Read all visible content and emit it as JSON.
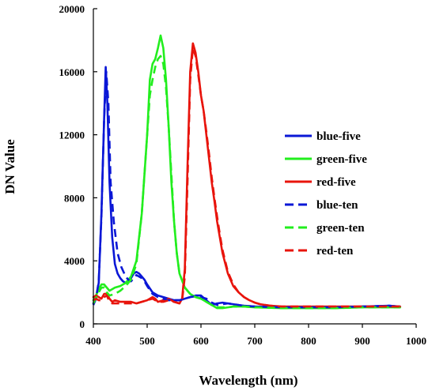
{
  "chart_data": {
    "type": "line",
    "title": "",
    "xlabel": "Wavelength (nm)",
    "ylabel": "DN Value",
    "xlim": [
      400,
      1000
    ],
    "ylim": [
      0,
      20000
    ],
    "xticks": [
      "400",
      "500",
      "600",
      "700",
      "800",
      "900",
      "1000"
    ],
    "yticks": [
      "0",
      "4000",
      "8000",
      "12000",
      "16000",
      "20000"
    ],
    "grid": false,
    "legend_position": "right",
    "series": [
      {
        "name": "blue-five",
        "color": "#0a17d6",
        "dash": "solid",
        "points": [
          [
            400,
            1300
          ],
          [
            405,
            1700
          ],
          [
            410,
            2600
          ],
          [
            415,
            7000
          ],
          [
            420,
            13000
          ],
          [
            423,
            16300
          ],
          [
            426,
            14000
          ],
          [
            430,
            9000
          ],
          [
            435,
            5500
          ],
          [
            440,
            3800
          ],
          [
            445,
            3200
          ],
          [
            450,
            2900
          ],
          [
            455,
            2700
          ],
          [
            460,
            2600
          ],
          [
            465,
            2700
          ],
          [
            470,
            2900
          ],
          [
            475,
            3200
          ],
          [
            480,
            3300
          ],
          [
            485,
            3200
          ],
          [
            490,
            3000
          ],
          [
            495,
            2800
          ],
          [
            500,
            2500
          ],
          [
            510,
            2000
          ],
          [
            520,
            1800
          ],
          [
            530,
            1700
          ],
          [
            540,
            1600
          ],
          [
            550,
            1500
          ],
          [
            560,
            1500
          ],
          [
            570,
            1600
          ],
          [
            580,
            1700
          ],
          [
            590,
            1800
          ],
          [
            600,
            1800
          ],
          [
            610,
            1500
          ],
          [
            620,
            1200
          ],
          [
            630,
            1300
          ],
          [
            640,
            1350
          ],
          [
            650,
            1300
          ],
          [
            660,
            1250
          ],
          [
            670,
            1200
          ],
          [
            680,
            1150
          ],
          [
            700,
            1100
          ],
          [
            750,
            1050
          ],
          [
            800,
            1050
          ],
          [
            850,
            1050
          ],
          [
            900,
            1100
          ],
          [
            950,
            1150
          ],
          [
            970,
            1100
          ]
        ]
      },
      {
        "name": "green-five",
        "color": "#22ee1e",
        "dash": "solid",
        "points": [
          [
            400,
            1500
          ],
          [
            405,
            1800
          ],
          [
            410,
            2200
          ],
          [
            415,
            2500
          ],
          [
            420,
            2500
          ],
          [
            425,
            2300
          ],
          [
            430,
            2100
          ],
          [
            440,
            2300
          ],
          [
            450,
            2400
          ],
          [
            460,
            2600
          ],
          [
            470,
            3000
          ],
          [
            480,
            4000
          ],
          [
            490,
            7000
          ],
          [
            500,
            12000
          ],
          [
            505,
            15500
          ],
          [
            510,
            16500
          ],
          [
            515,
            16800
          ],
          [
            520,
            17500
          ],
          [
            525,
            18300
          ],
          [
            530,
            17500
          ],
          [
            535,
            15500
          ],
          [
            540,
            12500
          ],
          [
            545,
            9000
          ],
          [
            550,
            6500
          ],
          [
            555,
            4500
          ],
          [
            560,
            3200
          ],
          [
            570,
            2300
          ],
          [
            580,
            1900
          ],
          [
            590,
            1700
          ],
          [
            600,
            1600
          ],
          [
            610,
            1400
          ],
          [
            620,
            1200
          ],
          [
            630,
            1000
          ],
          [
            640,
            1000
          ],
          [
            650,
            1050
          ],
          [
            660,
            1100
          ],
          [
            680,
            1100
          ],
          [
            700,
            1050
          ],
          [
            750,
            1000
          ],
          [
            800,
            1000
          ],
          [
            850,
            1000
          ],
          [
            900,
            1050
          ],
          [
            950,
            1050
          ],
          [
            970,
            1050
          ]
        ]
      },
      {
        "name": "red-five",
        "color": "#e8140c",
        "dash": "solid",
        "points": [
          [
            400,
            1700
          ],
          [
            405,
            1800
          ],
          [
            410,
            1700
          ],
          [
            415,
            1600
          ],
          [
            420,
            1900
          ],
          [
            425,
            1900
          ],
          [
            430,
            1600
          ],
          [
            435,
            1400
          ],
          [
            440,
            1500
          ],
          [
            450,
            1400
          ],
          [
            460,
            1400
          ],
          [
            470,
            1400
          ],
          [
            480,
            1300
          ],
          [
            490,
            1400
          ],
          [
            500,
            1500
          ],
          [
            510,
            1700
          ],
          [
            515,
            1600
          ],
          [
            520,
            1400
          ],
          [
            530,
            1500
          ],
          [
            540,
            1600
          ],
          [
            550,
            1400
          ],
          [
            560,
            1300
          ],
          [
            565,
            1600
          ],
          [
            570,
            3500
          ],
          [
            575,
            10000
          ],
          [
            580,
            16000
          ],
          [
            585,
            17800
          ],
          [
            590,
            17200
          ],
          [
            595,
            16000
          ],
          [
            600,
            14500
          ],
          [
            605,
            13500
          ],
          [
            610,
            12000
          ],
          [
            615,
            10500
          ],
          [
            620,
            9000
          ],
          [
            625,
            7800
          ],
          [
            630,
            6500
          ],
          [
            635,
            5500
          ],
          [
            640,
            4500
          ],
          [
            650,
            3200
          ],
          [
            660,
            2400
          ],
          [
            670,
            2000
          ],
          [
            680,
            1700
          ],
          [
            690,
            1500
          ],
          [
            700,
            1350
          ],
          [
            710,
            1250
          ],
          [
            730,
            1150
          ],
          [
            750,
            1100
          ],
          [
            800,
            1100
          ],
          [
            850,
            1100
          ],
          [
            900,
            1100
          ],
          [
            950,
            1100
          ],
          [
            970,
            1100
          ]
        ]
      },
      {
        "name": "blue-ten",
        "color": "#0a17d6",
        "dash": "dashed",
        "points": [
          [
            400,
            1200
          ],
          [
            405,
            1600
          ],
          [
            410,
            2700
          ],
          [
            415,
            6800
          ],
          [
            420,
            13000
          ],
          [
            424,
            16000
          ],
          [
            428,
            14000
          ],
          [
            432,
            9000
          ],
          [
            438,
            6500
          ],
          [
            445,
            4500
          ],
          [
            452,
            3600
          ],
          [
            460,
            3000
          ],
          [
            465,
            2800
          ],
          [
            470,
            2700
          ],
          [
            475,
            2900
          ],
          [
            480,
            3100
          ],
          [
            485,
            3000
          ],
          [
            490,
            2900
          ],
          [
            495,
            2700
          ],
          [
            500,
            2400
          ],
          [
            510,
            1900
          ],
          [
            520,
            1700
          ],
          [
            530,
            1600
          ],
          [
            540,
            1500
          ],
          [
            550,
            1500
          ],
          [
            560,
            1500
          ],
          [
            570,
            1600
          ],
          [
            580,
            1700
          ],
          [
            590,
            1750
          ],
          [
            600,
            1700
          ],
          [
            610,
            1600
          ],
          [
            620,
            1350
          ],
          [
            630,
            1200
          ],
          [
            640,
            1250
          ],
          [
            650,
            1300
          ],
          [
            660,
            1250
          ],
          [
            670,
            1200
          ],
          [
            680,
            1150
          ],
          [
            700,
            1100
          ],
          [
            750,
            1050
          ],
          [
            800,
            1050
          ],
          [
            850,
            1050
          ],
          [
            900,
            1100
          ],
          [
            950,
            1150
          ],
          [
            970,
            1100
          ]
        ]
      },
      {
        "name": "green-ten",
        "color": "#22ee1e",
        "dash": "dashed",
        "points": [
          [
            400,
            1300
          ],
          [
            410,
            2000
          ],
          [
            415,
            2300
          ],
          [
            420,
            2300
          ],
          [
            425,
            2000
          ],
          [
            430,
            1800
          ],
          [
            440,
            1900
          ],
          [
            450,
            2100
          ],
          [
            460,
            2400
          ],
          [
            470,
            2800
          ],
          [
            480,
            3800
          ],
          [
            490,
            7000
          ],
          [
            500,
            12000
          ],
          [
            505,
            14500
          ],
          [
            510,
            15500
          ],
          [
            515,
            16300
          ],
          [
            520,
            16800
          ],
          [
            525,
            17000
          ],
          [
            530,
            16500
          ],
          [
            535,
            15000
          ],
          [
            540,
            12500
          ],
          [
            545,
            9500
          ],
          [
            550,
            6500
          ],
          [
            555,
            4500
          ],
          [
            560,
            3200
          ],
          [
            570,
            2300
          ],
          [
            580,
            1900
          ],
          [
            590,
            1700
          ],
          [
            600,
            1600
          ],
          [
            610,
            1400
          ],
          [
            620,
            1200
          ],
          [
            630,
            1050
          ],
          [
            640,
            1050
          ],
          [
            650,
            1050
          ],
          [
            660,
            1100
          ],
          [
            680,
            1100
          ],
          [
            700,
            1050
          ],
          [
            750,
            1000
          ],
          [
            800,
            1000
          ],
          [
            850,
            1000
          ],
          [
            900,
            1050
          ],
          [
            950,
            1050
          ],
          [
            970,
            1050
          ]
        ]
      },
      {
        "name": "red-ten",
        "color": "#e8140c",
        "dash": "dashed",
        "points": [
          [
            400,
            1500
          ],
          [
            405,
            1600
          ],
          [
            410,
            1500
          ],
          [
            415,
            1500
          ],
          [
            420,
            1700
          ],
          [
            425,
            1800
          ],
          [
            430,
            1400
          ],
          [
            435,
            1300
          ],
          [
            440,
            1300
          ],
          [
            450,
            1300
          ],
          [
            460,
            1300
          ],
          [
            470,
            1300
          ],
          [
            480,
            1300
          ],
          [
            490,
            1400
          ],
          [
            500,
            1500
          ],
          [
            510,
            1600
          ],
          [
            520,
            1400
          ],
          [
            530,
            1400
          ],
          [
            540,
            1500
          ],
          [
            550,
            1400
          ],
          [
            560,
            1300
          ],
          [
            565,
            1500
          ],
          [
            570,
            3000
          ],
          [
            575,
            9000
          ],
          [
            580,
            15500
          ],
          [
            585,
            17500
          ],
          [
            590,
            17000
          ],
          [
            595,
            15800
          ],
          [
            600,
            14500
          ],
          [
            605,
            13500
          ],
          [
            610,
            12200
          ],
          [
            615,
            10800
          ],
          [
            620,
            9300
          ],
          [
            625,
            8000
          ],
          [
            630,
            6800
          ],
          [
            635,
            5700
          ],
          [
            640,
            4700
          ],
          [
            650,
            3300
          ],
          [
            660,
            2500
          ],
          [
            670,
            2000
          ],
          [
            680,
            1700
          ],
          [
            690,
            1500
          ],
          [
            700,
            1350
          ],
          [
            710,
            1250
          ],
          [
            730,
            1150
          ],
          [
            750,
            1100
          ],
          [
            800,
            1100
          ],
          [
            850,
            1100
          ],
          [
            900,
            1100
          ],
          [
            950,
            1100
          ],
          [
            970,
            1100
          ]
        ]
      }
    ]
  }
}
